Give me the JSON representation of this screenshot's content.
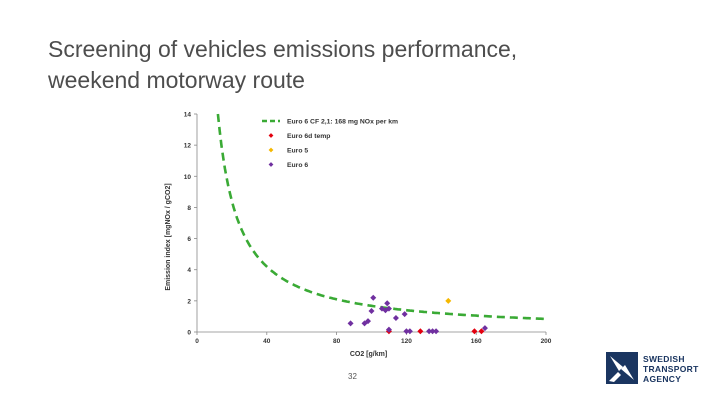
{
  "slide": {
    "title_line1": "Screening of vehicles emissions performance,",
    "title_line2": "weekend motorway route",
    "page_number": "32"
  },
  "logo": {
    "line1": "SWEDISH",
    "line2": "TRANSPORT",
    "line3": "AGENCY",
    "color": "#1a3560"
  },
  "chart_data": {
    "type": "scatter",
    "xlabel": "CO2 [g/km]",
    "ylabel": "Emission index [mgNOx / gCO2]",
    "xlim": [
      0,
      200
    ],
    "ylim": [
      0,
      14
    ],
    "xticks": [
      0,
      40,
      80,
      120,
      160,
      200
    ],
    "yticks": [
      0,
      2,
      4,
      6,
      8,
      10,
      12,
      14
    ],
    "legend": [
      {
        "label": "Euro 6 CF 2,1: 168 mg NOx per km",
        "color": "#3aaa35",
        "style": "dashed-line"
      },
      {
        "label": "Euro 6d temp",
        "color": "#e3000f",
        "style": "diamond"
      },
      {
        "label": "Euro 5",
        "color": "#f5b800",
        "style": "diamond"
      },
      {
        "label": "Euro 6",
        "color": "#7030a0",
        "style": "diamond"
      }
    ],
    "curve": {
      "name": "Euro 6 CF 2,1: 168 mg NOx per km",
      "formula": "y = 168 / x",
      "x_start": 12,
      "x_end": 200,
      "color": "#3aaa35"
    },
    "series": [
      {
        "name": "Euro 6d temp",
        "color": "#e3000f",
        "points": [
          [
            110,
            0.05
          ],
          [
            128,
            0.05
          ],
          [
            159,
            0.05
          ],
          [
            163,
            0.05
          ]
        ]
      },
      {
        "name": "Euro 5",
        "color": "#f5b800",
        "points": [
          [
            144,
            2.0
          ]
        ]
      },
      {
        "name": "Euro 6",
        "color": "#7030a0",
        "points": [
          [
            88,
            0.55
          ],
          [
            96,
            0.55
          ],
          [
            98,
            0.7
          ],
          [
            100,
            1.35
          ],
          [
            101,
            2.2
          ],
          [
            106,
            1.5
          ],
          [
            108,
            1.4
          ],
          [
            109,
            1.85
          ],
          [
            110,
            1.5
          ],
          [
            110,
            0.15
          ],
          [
            114,
            0.9
          ],
          [
            119,
            1.15
          ],
          [
            120,
            0.05
          ],
          [
            122,
            0.05
          ],
          [
            133,
            0.05
          ],
          [
            135,
            0.05
          ],
          [
            137,
            0.05
          ],
          [
            165,
            0.25
          ]
        ]
      }
    ]
  }
}
